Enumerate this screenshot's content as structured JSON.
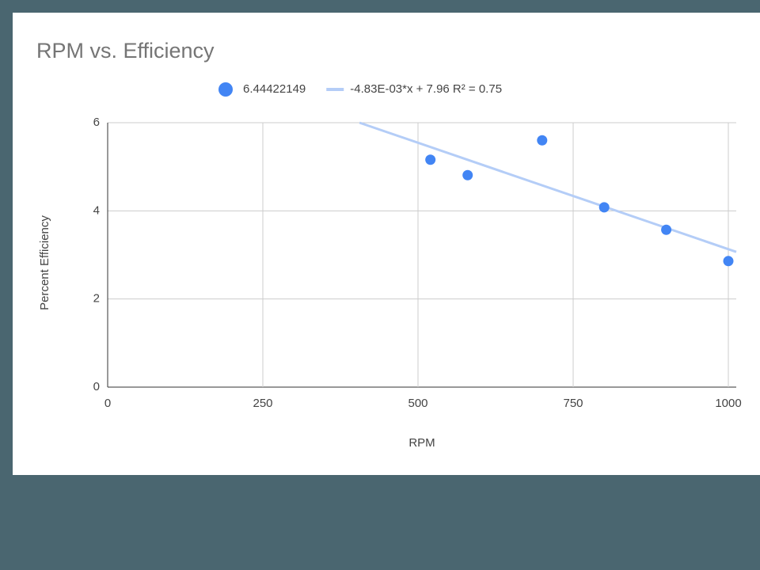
{
  "chart_data": {
    "type": "scatter",
    "title": "RPM vs. Efficiency",
    "x_label": "RPM",
    "y_label": "Percent Efficiency",
    "series": [
      {
        "name": "6.44422149",
        "color": "#4285f4",
        "x": [
          520,
          580,
          700,
          800,
          900,
          1000
        ],
        "values": [
          5.16,
          4.81,
          5.6,
          4.08,
          3.57,
          2.86
        ]
      }
    ],
    "trendline": {
      "name": "-4.83E-03*x + 7.96 R² = 0.75",
      "color": "#b4cdf7",
      "slope": -0.00483,
      "intercept": 7.96
    },
    "xlim": [
      0,
      1000
    ],
    "xticks": [
      0,
      250,
      500,
      750,
      1000
    ],
    "ylim": [
      0,
      6
    ],
    "yticks": [
      0,
      2,
      4,
      6
    ],
    "grid": true
  }
}
